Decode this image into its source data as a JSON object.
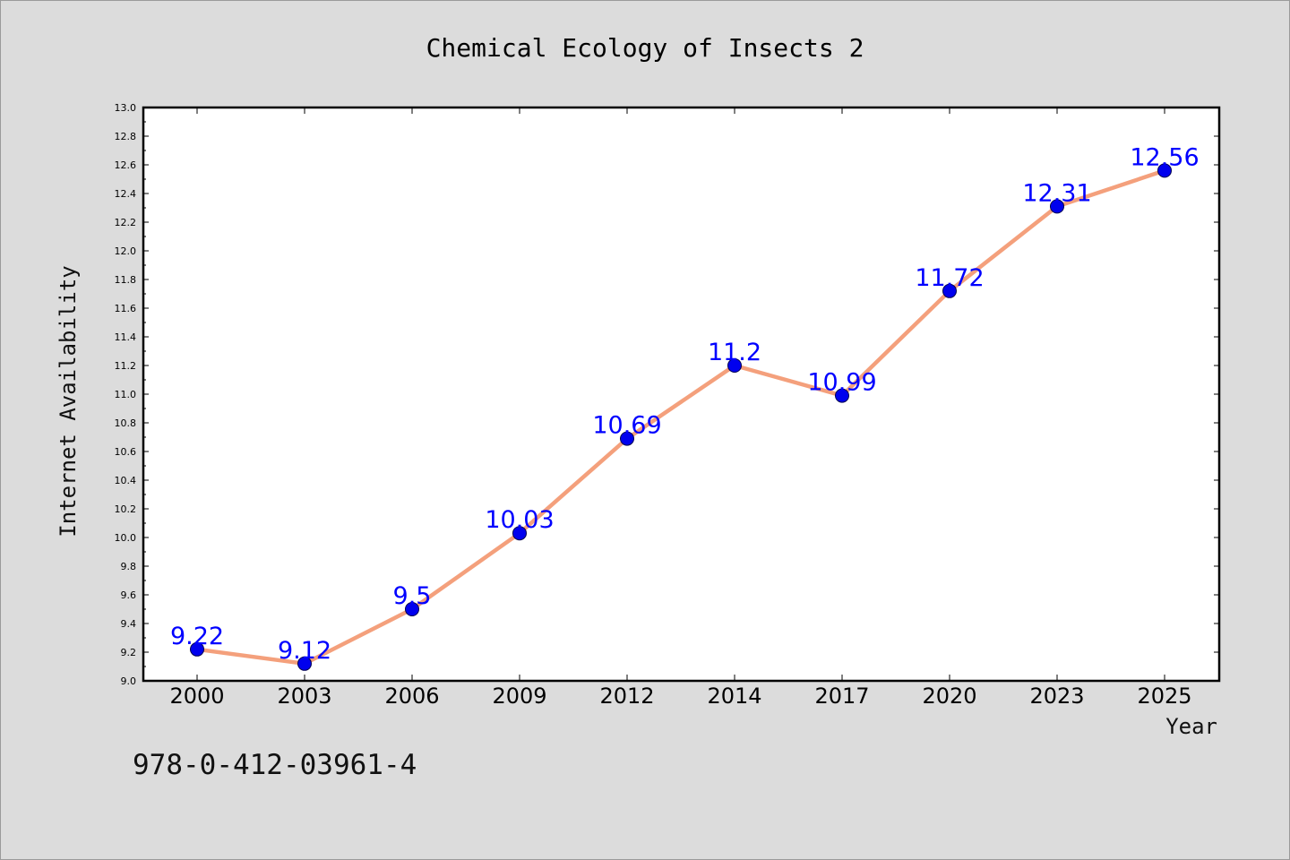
{
  "chart_data": {
    "type": "line",
    "title": "Chemical Ecology of Insects 2",
    "xlabel": "Year",
    "ylabel": "Internet Availability",
    "categories": [
      "2000",
      "2003",
      "2006",
      "2009",
      "2012",
      "2014",
      "2017",
      "2020",
      "2023",
      "2025"
    ],
    "series": [
      {
        "values": [
          9.22,
          9.12,
          9.5,
          10.03,
          10.69,
          11.2,
          10.99,
          11.72,
          12.31,
          12.56
        ],
        "data_labels": [
          "9.22",
          "9.12",
          "9.5",
          "10.03",
          "10.69",
          "11.2",
          "10.99",
          "11.72",
          "12.31",
          "12.56"
        ],
        "line_color": "#f4a07c",
        "marker_color": "#0000ee",
        "label_color": "#0000ff"
      }
    ],
    "ylim": [
      9.0,
      13.0
    ],
    "yticks": [
      "9.0",
      "9.2",
      "9.4",
      "9.6",
      "9.8",
      "10.0",
      "10.2",
      "10.4",
      "10.6",
      "10.8",
      "11.0",
      "11.2",
      "11.4",
      "11.6",
      "11.8",
      "12.0",
      "12.2",
      "12.4",
      "12.6",
      "12.8",
      "13.0"
    ],
    "grid": false,
    "legend": "none"
  },
  "annotation": {
    "isbn": "978-0-412-03961-4"
  },
  "colors": {
    "background": "#dcdcdc",
    "plot_background": "#ffffff"
  }
}
